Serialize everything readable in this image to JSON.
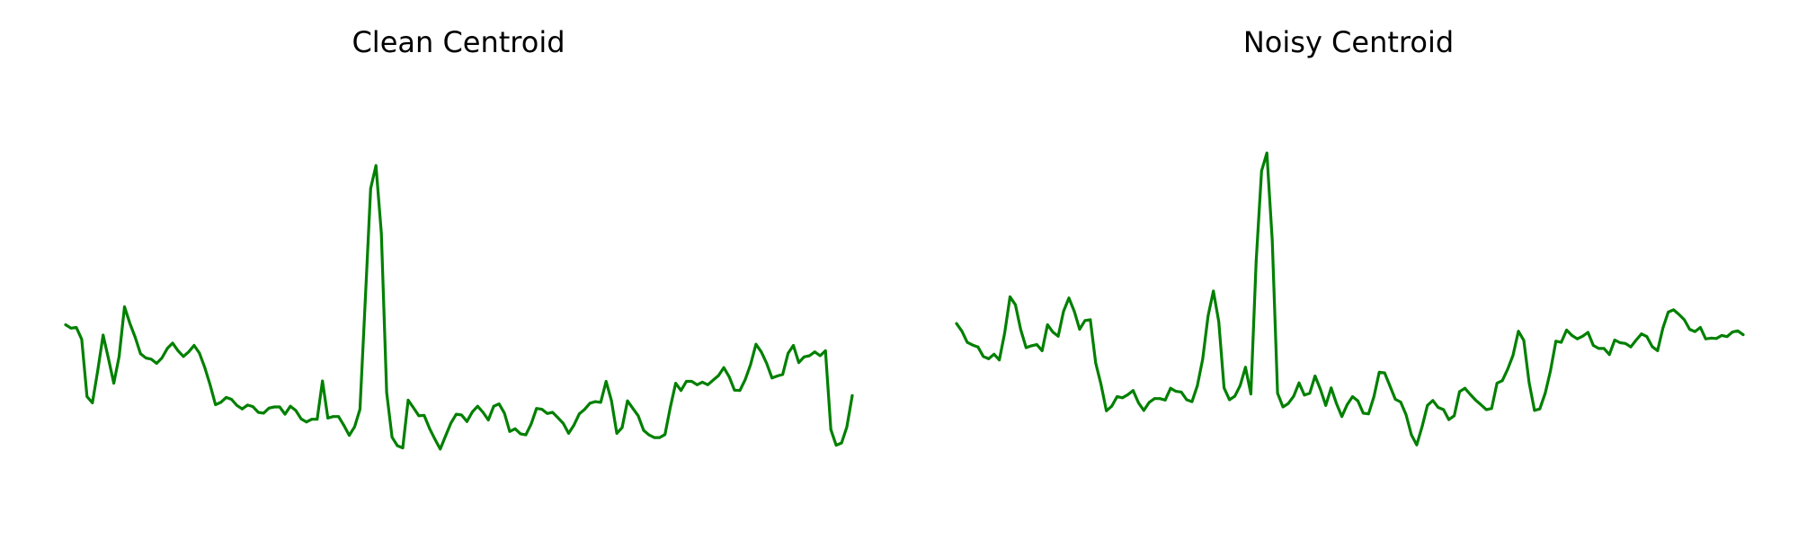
{
  "figure": {
    "line_color": "#008000"
  },
  "chart_data": [
    {
      "type": "line",
      "title": "Clean Centroid",
      "xlabel": "",
      "ylabel": "",
      "axes_visible": false,
      "grid": false,
      "ylim": [
        -0.066,
        1.0
      ],
      "series": [
        {
          "name": "",
          "color": "#008000",
          "values": [
            0.379,
            0.37,
            0.372,
            0.341,
            0.191,
            0.175,
            0.259,
            0.352,
            0.291,
            0.226,
            0.296,
            0.426,
            0.383,
            0.346,
            0.303,
            0.292,
            0.289,
            0.278,
            0.292,
            0.317,
            0.331,
            0.311,
            0.296,
            0.308,
            0.325,
            0.305,
            0.267,
            0.222,
            0.17,
            0.176,
            0.189,
            0.184,
            0.168,
            0.159,
            0.169,
            0.165,
            0.15,
            0.148,
            0.161,
            0.164,
            0.164,
            0.145,
            0.166,
            0.155,
            0.133,
            0.125,
            0.132,
            0.132,
            0.232,
            0.135,
            0.139,
            0.139,
            0.116,
            0.09,
            0.112,
            0.158,
            0.442,
            0.735,
            0.795,
            0.618,
            0.202,
            0.085,
            0.063,
            0.057,
            0.182,
            0.162,
            0.141,
            0.142,
            0.108,
            0.08,
            0.054,
            0.088,
            0.122,
            0.145,
            0.143,
            0.126,
            0.151,
            0.166,
            0.15,
            0.13,
            0.166,
            0.172,
            0.148,
            0.1,
            0.107,
            0.094,
            0.091,
            0.12,
            0.16,
            0.158,
            0.147,
            0.15,
            0.136,
            0.121,
            0.095,
            0.117,
            0.146,
            0.158,
            0.174,
            0.178,
            0.176,
            0.231,
            0.181,
            0.095,
            0.11,
            0.18,
            0.16,
            0.141,
            0.103,
            0.091,
            0.084,
            0.084,
            0.092,
            0.163,
            0.226,
            0.207,
            0.231,
            0.231,
            0.222,
            0.229,
            0.222,
            0.234,
            0.246,
            0.267,
            0.243,
            0.208,
            0.207,
            0.236,
            0.275,
            0.328,
            0.308,
            0.278,
            0.24,
            0.245,
            0.249,
            0.304,
            0.325,
            0.28,
            0.295,
            0.298,
            0.308,
            0.298,
            0.311,
            0.105,
            0.064,
            0.07,
            0.112,
            0.194
          ]
        }
      ]
    },
    {
      "type": "line",
      "title": "Noisy Centroid",
      "xlabel": "",
      "ylabel": "",
      "axes_visible": false,
      "grid": false,
      "ylim": [
        -0.066,
        1.0
      ],
      "series": [
        {
          "name": "",
          "color": "#008000",
          "values": [
            0.382,
            0.362,
            0.333,
            0.326,
            0.321,
            0.296,
            0.29,
            0.302,
            0.287,
            0.358,
            0.452,
            0.431,
            0.366,
            0.319,
            0.324,
            0.327,
            0.311,
            0.379,
            0.36,
            0.349,
            0.414,
            0.449,
            0.414,
            0.367,
            0.39,
            0.392,
            0.279,
            0.223,
            0.154,
            0.166,
            0.191,
            0.188,
            0.196,
            0.207,
            0.175,
            0.155,
            0.176,
            0.186,
            0.186,
            0.182,
            0.213,
            0.205,
            0.203,
            0.183,
            0.178,
            0.22,
            0.289,
            0.402,
            0.467,
            0.387,
            0.214,
            0.183,
            0.192,
            0.22,
            0.268,
            0.198,
            0.546,
            0.781,
            0.828,
            0.599,
            0.2,
            0.164,
            0.173,
            0.192,
            0.227,
            0.195,
            0.2,
            0.245,
            0.21,
            0.168,
            0.214,
            0.173,
            0.139,
            0.17,
            0.191,
            0.18,
            0.148,
            0.146,
            0.191,
            0.255,
            0.253,
            0.219,
            0.184,
            0.177,
            0.144,
            0.091,
            0.065,
            0.113,
            0.168,
            0.181,
            0.163,
            0.157,
            0.131,
            0.141,
            0.204,
            0.213,
            0.197,
            0.182,
            0.17,
            0.157,
            0.16,
            0.226,
            0.233,
            0.263,
            0.299,
            0.362,
            0.338,
            0.228,
            0.155,
            0.159,
            0.2,
            0.259,
            0.336,
            0.333,
            0.365,
            0.351,
            0.342,
            0.349,
            0.359,
            0.325,
            0.317,
            0.317,
            0.301,
            0.339,
            0.332,
            0.33,
            0.321,
            0.339,
            0.355,
            0.348,
            0.322,
            0.311,
            0.37,
            0.412,
            0.418,
            0.406,
            0.392,
            0.367,
            0.361,
            0.372,
            0.342,
            0.344,
            0.343,
            0.351,
            0.348,
            0.36,
            0.363,
            0.353
          ]
        }
      ]
    }
  ]
}
